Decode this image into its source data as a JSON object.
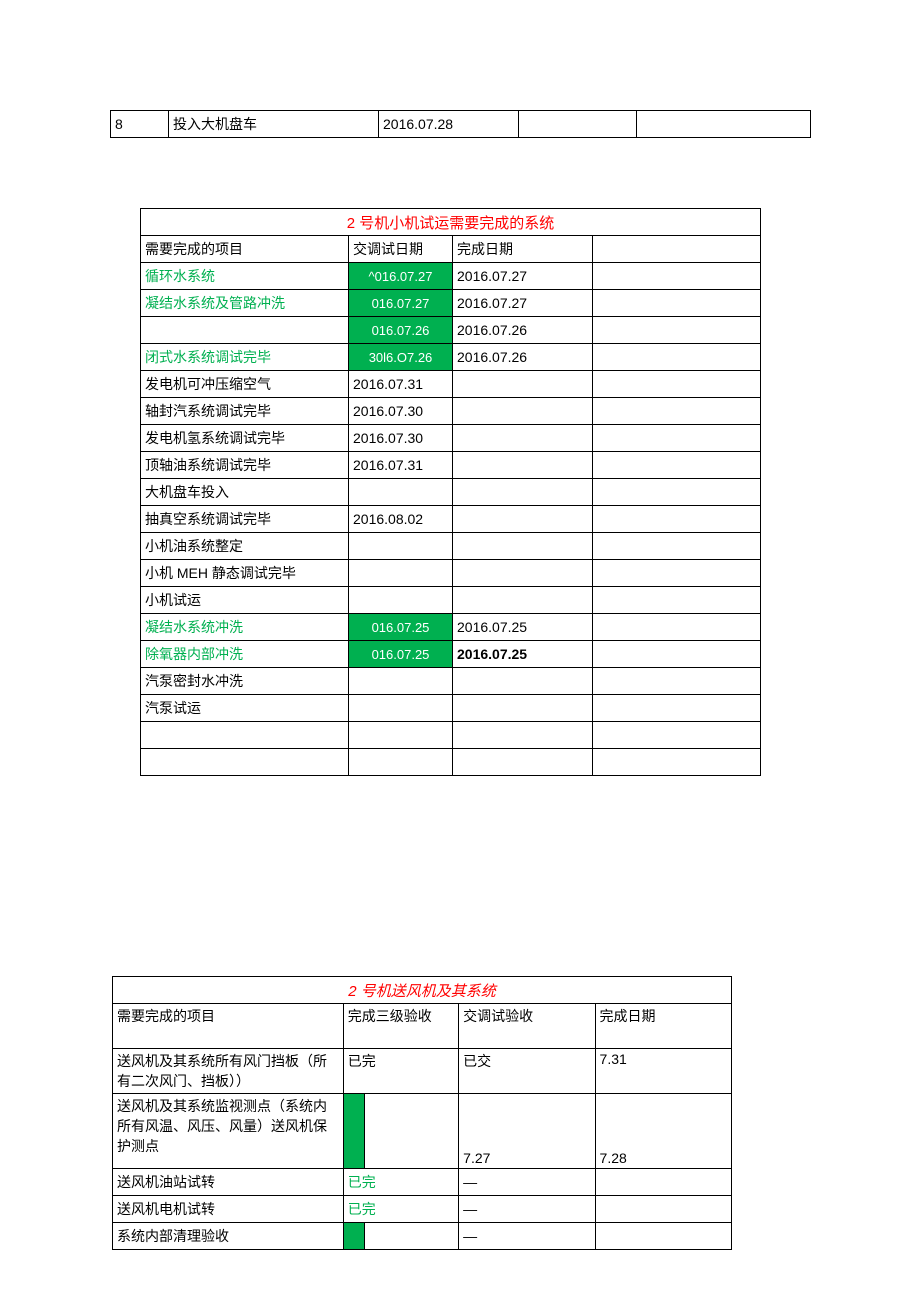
{
  "table1": {
    "row": {
      "num": "8",
      "item": "投入大机盘车",
      "date": "2016.07.28"
    }
  },
  "table2": {
    "title": "2 号机小机试运需要完成的系统",
    "headers": {
      "c1": "需要完成的项目",
      "c2": "交调试日期",
      "c3": "完成日期"
    },
    "rows": [
      {
        "c1": "循环水系统",
        "c1_green": true,
        "c2": "^016.07.27",
        "c2_fill": true,
        "c3": "2016.07.27"
      },
      {
        "c1": "凝结水系统及管路冲洗",
        "c1_green": true,
        "c2": "016.07.27",
        "c2_fill": true,
        "c3": "2016.07.27"
      },
      {
        "c1": "",
        "c1_green": false,
        "c2": "016.07.26",
        "c2_fill": true,
        "c3": "2016.07.26"
      },
      {
        "c1": "闭式水系统调试完毕",
        "c1_green": true,
        "c2": "30l6.O7.26",
        "c2_fill": true,
        "c3": "2016.07.26"
      },
      {
        "c1": "发电机可冲压缩空气",
        "c2": "2016.07.31",
        "c3": ""
      },
      {
        "c1": "轴封汽系统调试完毕",
        "c2": "2016.07.30",
        "c3": ""
      },
      {
        "c1": "发电机氢系统调试完毕",
        "c2": "2016.07.30",
        "c3": ""
      },
      {
        "c1": "顶轴油系统调试完毕",
        "c2": "2016.07.31",
        "c3": ""
      },
      {
        "c1": "大机盘车投入",
        "c2": "",
        "c3": ""
      },
      {
        "c1": "抽真空系统调试完毕",
        "c2": "2016.08.02",
        "c3": ""
      },
      {
        "c1": "小机油系统整定",
        "c2": "",
        "c3": ""
      },
      {
        "c1": "小机 MEH 静态调试完毕",
        "c2": "",
        "c3": ""
      },
      {
        "c1": "小机试运",
        "c2": "",
        "c3": ""
      },
      {
        "c1": "凝结水系统冲洗",
        "c1_green": true,
        "c2": "016.07.25",
        "c2_fill": true,
        "c3": "2016.07.25"
      },
      {
        "c1": "除氧器内部冲洗",
        "c1_green": true,
        "c2": "016.07.25",
        "c2_fill": true,
        "c3": "2016.07.25",
        "c3_bold": true
      },
      {
        "c1": "汽泵密封水冲洗",
        "c2": "",
        "c3": ""
      },
      {
        "c1": "汽泵试运",
        "c2": "",
        "c3": ""
      },
      {
        "c1": "",
        "c2": "",
        "c3": ""
      },
      {
        "c1": "",
        "c2": "",
        "c3": ""
      }
    ]
  },
  "table3": {
    "title": "2 号机送风机及其系统",
    "headers": {
      "c1": "需要完成的项目",
      "c2": "完成三级验收",
      "c3": "交调试验收",
      "c4": "完成日期"
    },
    "rows": [
      {
        "c1": "送风机及其系统所有风门挡板（所有二次风门、挡板））",
        "c2": "已完",
        "c3": "已交",
        "c4": "7.31",
        "tall": "tall"
      },
      {
        "c1": "送风机及其系统监视测点（系统内所有风温、风压、风量）送风机保护测点",
        "c2_block": true,
        "c3": "7.27",
        "c4": "7.28",
        "tall": "tall3"
      },
      {
        "c1": "送风机油站试转",
        "c2": "已完",
        "c2_green": true,
        "c3": "—",
        "c4": ""
      },
      {
        "c1": "送风机电机试转",
        "c2": "已完",
        "c2_green": true,
        "c3": "—",
        "c4": ""
      },
      {
        "c1": "系统内部清理验收",
        "c2_block": true,
        "c3": "—",
        "c4": ""
      }
    ]
  }
}
